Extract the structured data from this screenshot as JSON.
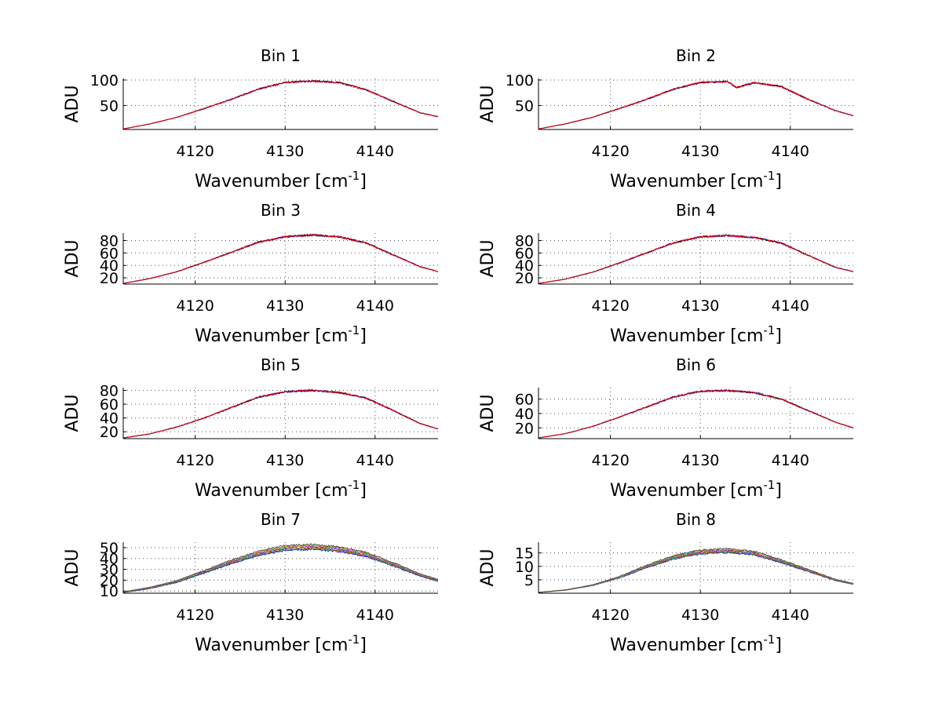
{
  "colors": {
    "background": "#ffffff",
    "axes": "#000000",
    "grid": "#555555",
    "series": [
      "#0000ff",
      "#00a000",
      "#ff0000",
      "#00bfbf",
      "#bf00bf",
      "#bfbf00",
      "#404040"
    ]
  },
  "chart_data": [
    {
      "type": "line",
      "title": "Bin 1",
      "xlabel": "Wavenumber [cm",
      "xlabel_sup": "-1",
      "xlabel_end": "]",
      "ylabel": "ADU",
      "xlim": [
        4112,
        4147
      ],
      "ylim": [
        3,
        103
      ],
      "xticks": [
        4120,
        4130,
        4140
      ],
      "yticks": [
        50,
        100
      ],
      "grid": true,
      "peak": 98,
      "x": [
        4112,
        4115,
        4118,
        4121,
        4124,
        4127,
        4130,
        4133,
        4136,
        4139,
        4142,
        4145,
        4147
      ],
      "y": [
        4,
        14,
        27,
        44,
        62,
        82,
        95,
        98,
        95,
        81,
        58,
        36,
        28
      ]
    },
    {
      "type": "line",
      "title": "Bin 2",
      "xlabel": "Wavenumber [cm",
      "xlabel_sup": "-1",
      "xlabel_end": "]",
      "ylabel": "ADU",
      "xlim": [
        4112,
        4147
      ],
      "ylim": [
        3,
        103
      ],
      "xticks": [
        4120,
        4130,
        4140
      ],
      "yticks": [
        50,
        100
      ],
      "grid": true,
      "peak": 98,
      "x": [
        4112,
        4115,
        4118,
        4121,
        4124,
        4127,
        4130,
        4133,
        4134,
        4136,
        4139,
        4142,
        4145,
        4147
      ],
      "y": [
        4,
        14,
        27,
        44,
        62,
        82,
        95,
        97,
        85,
        95,
        87,
        62,
        40,
        30
      ]
    },
    {
      "type": "line",
      "title": "Bin 3",
      "xlabel": "Wavenumber [cm",
      "xlabel_sup": "-1",
      "xlabel_end": "]",
      "ylabel": "ADU",
      "xlim": [
        4112,
        4147
      ],
      "ylim": [
        10,
        92
      ],
      "xticks": [
        4120,
        4130,
        4140
      ],
      "yticks": [
        20,
        40,
        60,
        80
      ],
      "grid": true,
      "peak": 89,
      "x": [
        4112,
        4115,
        4118,
        4121,
        4124,
        4127,
        4130,
        4133,
        4136,
        4139,
        4142,
        4145,
        4147
      ],
      "y": [
        11,
        19,
        30,
        45,
        61,
        77,
        86,
        89,
        86,
        76,
        57,
        38,
        30
      ]
    },
    {
      "type": "line",
      "title": "Bin 4",
      "xlabel": "Wavenumber [cm",
      "xlabel_sup": "-1",
      "xlabel_end": "]",
      "ylabel": "ADU",
      "xlim": [
        4112,
        4147
      ],
      "ylim": [
        10,
        92
      ],
      "xticks": [
        4120,
        4130,
        4140
      ],
      "yticks": [
        20,
        40,
        60,
        80
      ],
      "grid": true,
      "peak": 89,
      "x": [
        4112,
        4115,
        4118,
        4121,
        4124,
        4127,
        4130,
        4133,
        4136,
        4139,
        4142,
        4145,
        4147
      ],
      "y": [
        11,
        18,
        29,
        44,
        60,
        76,
        86,
        88,
        85,
        76,
        56,
        37,
        30
      ]
    },
    {
      "type": "line",
      "title": "Bin 5",
      "xlabel": "Wavenumber [cm",
      "xlabel_sup": "-1",
      "xlabel_end": "]",
      "ylabel": "ADU",
      "xlim": [
        4112,
        4147
      ],
      "ylim": [
        10,
        84
      ],
      "xticks": [
        4120,
        4130,
        4140
      ],
      "yticks": [
        20,
        40,
        60,
        80
      ],
      "grid": true,
      "peak": 81,
      "x": [
        4112,
        4115,
        4118,
        4121,
        4124,
        4127,
        4130,
        4133,
        4136,
        4139,
        4142,
        4145,
        4147
      ],
      "y": [
        11,
        17,
        27,
        40,
        55,
        70,
        78,
        80,
        77,
        69,
        51,
        32,
        24
      ]
    },
    {
      "type": "line",
      "title": "Bin 6",
      "xlabel": "Wavenumber [cm",
      "xlabel_sup": "-1",
      "xlabel_end": "]",
      "ylabel": "ADU",
      "xlim": [
        4112,
        4147
      ],
      "ylim": [
        5,
        76
      ],
      "xticks": [
        4120,
        4130,
        4140
      ],
      "yticks": [
        20,
        40,
        60
      ],
      "grid": true,
      "peak": 73,
      "x": [
        4112,
        4115,
        4118,
        4121,
        4124,
        4127,
        4130,
        4133,
        4136,
        4139,
        4142,
        4145,
        4147
      ],
      "y": [
        6,
        12,
        22,
        35,
        49,
        63,
        71,
        72,
        69,
        60,
        44,
        28,
        20
      ]
    },
    {
      "type": "line",
      "title": "Bin 7",
      "xlabel": "Wavenumber [cm",
      "xlabel_sup": "-1",
      "xlabel_end": "]",
      "ylabel": "ADU",
      "xlim": [
        4112,
        4147
      ],
      "ylim": [
        8,
        55
      ],
      "xticks": [
        4120,
        4130,
        4140
      ],
      "yticks": [
        10,
        20,
        30,
        40,
        50
      ],
      "grid": true,
      "peak": 53,
      "x": [
        4112,
        4115,
        4118,
        4121,
        4124,
        4127,
        4130,
        4133,
        4136,
        4139,
        4142,
        4145,
        4147
      ],
      "y": [
        9,
        13,
        19,
        28,
        37,
        45,
        50,
        51,
        49,
        44,
        35,
        25,
        20
      ]
    },
    {
      "type": "line",
      "title": "Bin 8",
      "xlabel": "Wavenumber [cm",
      "xlabel_sup": "-1",
      "xlabel_end": "]",
      "ylabel": "ADU",
      "xlim": [
        4112,
        4147
      ],
      "ylim": [
        0,
        19
      ],
      "xticks": [
        4120,
        4130,
        4140
      ],
      "yticks": [
        5,
        10,
        15
      ],
      "grid": true,
      "peak": 17,
      "x": [
        4112,
        4115,
        4118,
        4121,
        4124,
        4127,
        4130,
        4133,
        4136,
        4139,
        4142,
        4145,
        4147
      ],
      "y": [
        0.3,
        1.2,
        3,
        6,
        10,
        13.5,
        15.5,
        16,
        15,
        12,
        8.5,
        5,
        3.5
      ]
    }
  ]
}
